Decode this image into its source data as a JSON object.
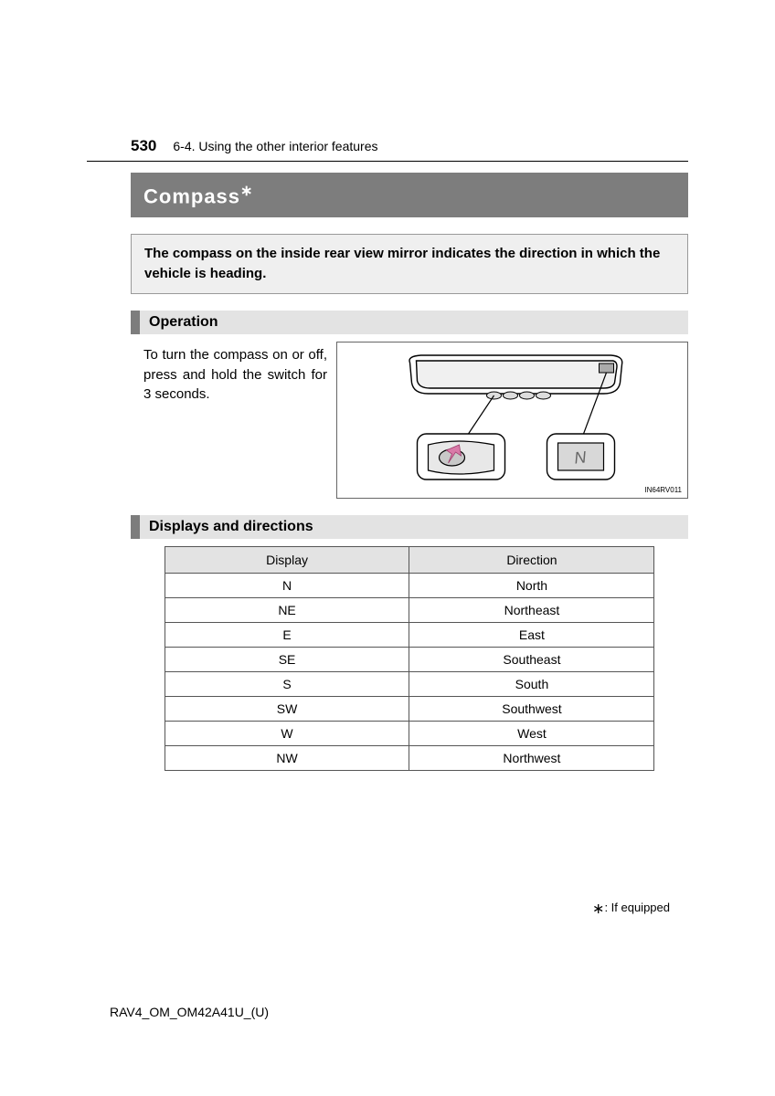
{
  "header": {
    "page_number": "530",
    "section_path": "6-4. Using the other interior features"
  },
  "title": {
    "text": "Compass",
    "asterisk": "∗"
  },
  "intro": "The compass on the inside rear view mirror indicates the direction in which the vehicle is heading.",
  "subheadings": {
    "operation": "Operation",
    "displays": "Displays and directions"
  },
  "operation_text": "To turn the compass on or off, press and hold the switch for 3 seconds.",
  "figure": {
    "code": "IN64RV011",
    "display_label": "N"
  },
  "table": {
    "columns": [
      "Display",
      "Direction"
    ],
    "rows": [
      [
        "N",
        "North"
      ],
      [
        "NE",
        "Northeast"
      ],
      [
        "E",
        "East"
      ],
      [
        "SE",
        "Southeast"
      ],
      [
        "S",
        "South"
      ],
      [
        "SW",
        "Southwest"
      ],
      [
        "W",
        "West"
      ],
      [
        "NW",
        "Northwest"
      ]
    ]
  },
  "footnote": {
    "asterisk": "∗",
    "text": ": If equipped"
  },
  "doc_code": "RAV4_OM_OM42A41U_(U)"
}
